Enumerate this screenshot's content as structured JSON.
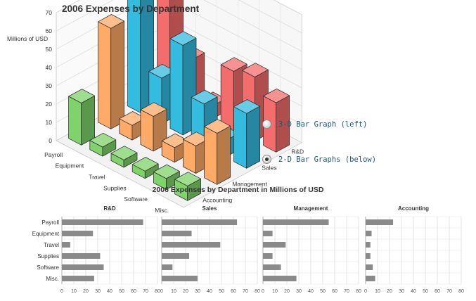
{
  "chart_data": [
    {
      "type": "bar",
      "subtype": "3d-grouped",
      "title": "2006 Expenses by Department",
      "ylabel": "Millions of USD",
      "ylim": [
        0,
        70
      ],
      "yticks": [
        0,
        10,
        20,
        30,
        40,
        50,
        60,
        70
      ],
      "categories": [
        "Payroll",
        "Equipment",
        "Travel",
        "Supplies",
        "Software",
        "Misc."
      ],
      "series": [
        {
          "name": "Accounting",
          "color": "#7fd36a",
          "values": [
            23,
            5,
            4,
            4,
            6,
            8
          ]
        },
        {
          "name": "Management",
          "color": "#ffaa66",
          "values": [
            55,
            8,
            19,
            8,
            15,
            28
          ]
        },
        {
          "name": "Sales",
          "color": "#33bbe0",
          "values": [
            63,
            25,
            49,
            23,
            9,
            30
          ]
        },
        {
          "name": "R&D",
          "color": "#f46d6d",
          "values": [
            68,
            26,
            7,
            32,
            35,
            27
          ]
        }
      ],
      "grid": true
    },
    {
      "type": "bar",
      "orientation": "horizontal",
      "title": "2006 Expenses by Department in Millions of USD",
      "categories": [
        "Payroll",
        "Equipment",
        "Travel",
        "Supplies",
        "Software",
        "Misc."
      ],
      "xlim": [
        0,
        80
      ],
      "xticks": [
        0,
        10,
        20,
        30,
        40,
        50,
        60,
        70,
        80
      ],
      "bar_color": "#8a8a8a",
      "panels": [
        {
          "name": "R&D",
          "values": [
            68,
            26,
            7,
            32,
            35,
            27
          ]
        },
        {
          "name": "Sales",
          "values": [
            63,
            25,
            49,
            23,
            9,
            30
          ]
        },
        {
          "name": "Management",
          "values": [
            55,
            8,
            19,
            8,
            15,
            28
          ]
        },
        {
          "name": "Accounting",
          "values": [
            23,
            5,
            4,
            4,
            6,
            8
          ]
        }
      ],
      "grid": true
    }
  ],
  "radio_options": [
    {
      "label": "3-D Bar Graph (left)",
      "checked": false
    },
    {
      "label": "2-D Bar Graphs (below)",
      "checked": true
    }
  ]
}
